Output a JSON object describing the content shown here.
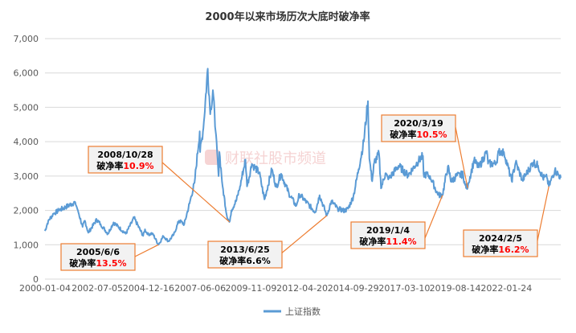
{
  "chart_data": {
    "type": "line",
    "title": "2000年以来市场历次大底时破净率",
    "xlabel": "",
    "ylabel": "",
    "ylim": [
      0,
      7000
    ],
    "yticks": [
      "0",
      "1,000",
      "2,000",
      "3,000",
      "4,000",
      "5,000",
      "6,000",
      "7,000"
    ],
    "xticks": [
      {
        "label": "2000-01-04",
        "date": "2000-01-04"
      },
      {
        "label": "2002-07-05",
        "date": "2002-07-05"
      },
      {
        "label": "2004-12-16",
        "date": "2004-12-16"
      },
      {
        "label": "2007-06-06",
        "date": "2007-06-06"
      },
      {
        "label": "2009-11-09",
        "date": "2009-11-09"
      },
      {
        "label": "2012-04-20",
        "date": "2012-04-20"
      },
      {
        "label": "2014-09-29",
        "date": "2014-09-29"
      },
      {
        "label": "2017-03-10",
        "date": "2017-03-10"
      },
      {
        "label": "2019-08-14",
        "date": "2019-08-14"
      },
      {
        "label": "2022-01-24",
        "date": "2022-01-24"
      }
    ],
    "xrange": [
      "2000-01-04",
      "2024-08-30"
    ],
    "grid": true,
    "legend_position": "bottom",
    "series": [
      {
        "name": "上证指数",
        "color": "#5b9bd5",
        "points": [
          [
            "2000-01-04",
            1400
          ],
          [
            "2000-03-01",
            1700
          ],
          [
            "2000-06-01",
            1900
          ],
          [
            "2000-09-01",
            2000
          ],
          [
            "2001-01-01",
            2100
          ],
          [
            "2001-06-14",
            2240
          ],
          [
            "2001-08-01",
            2000
          ],
          [
            "2001-10-22",
            1520
          ],
          [
            "2001-12-01",
            1700
          ],
          [
            "2002-01-29",
            1350
          ],
          [
            "2002-06-25",
            1730
          ],
          [
            "2002-09-01",
            1600
          ],
          [
            "2003-01-06",
            1320
          ],
          [
            "2003-04-15",
            1650
          ],
          [
            "2003-11-15",
            1320
          ],
          [
            "2004-04-07",
            1780
          ],
          [
            "2004-09-13",
            1260
          ],
          [
            "2004-10-15",
            1450
          ],
          [
            "2004-12-01",
            1300
          ],
          [
            "2005-02-25",
            1330
          ],
          [
            "2005-06-06",
            1000
          ],
          [
            "2005-09-01",
            1250
          ],
          [
            "2005-12-01",
            1100
          ],
          [
            "2006-03-01",
            1300
          ],
          [
            "2006-06-01",
            1700
          ],
          [
            "2006-09-01",
            1600
          ],
          [
            "2006-12-01",
            2200
          ],
          [
            "2007-02-27",
            2800
          ],
          [
            "2007-05-29",
            4300
          ],
          [
            "2007-06-05",
            3700
          ],
          [
            "2007-08-01",
            4400
          ],
          [
            "2007-10-16",
            6124
          ],
          [
            "2007-11-28",
            4800
          ],
          [
            "2008-01-14",
            5500
          ],
          [
            "2008-03-01",
            4300
          ],
          [
            "2008-04-22",
            3000
          ],
          [
            "2008-05-06",
            3700
          ],
          [
            "2008-07-01",
            2700
          ],
          [
            "2008-09-18",
            1800
          ],
          [
            "2008-10-28",
            1664
          ],
          [
            "2008-12-01",
            2000
          ],
          [
            "2009-03-01",
            2300
          ],
          [
            "2009-05-01",
            2700
          ],
          [
            "2009-08-04",
            3478
          ],
          [
            "2009-09-01",
            2700
          ],
          [
            "2009-11-24",
            3350
          ],
          [
            "2010-04-01",
            3100
          ],
          [
            "2010-07-02",
            2320
          ],
          [
            "2010-11-08",
            3186
          ],
          [
            "2011-01-25",
            2680
          ],
          [
            "2011-04-18",
            3067
          ],
          [
            "2011-09-01",
            2500
          ],
          [
            "2012-01-06",
            2130
          ],
          [
            "2012-03-02",
            2470
          ],
          [
            "2012-06-01",
            2300
          ],
          [
            "2012-12-04",
            1950
          ],
          [
            "2013-02-18",
            2440
          ],
          [
            "2013-06-25",
            1850
          ],
          [
            "2013-09-12",
            2270
          ],
          [
            "2014-01-01",
            2050
          ],
          [
            "2014-04-28",
            1990
          ],
          [
            "2014-07-01",
            2050
          ],
          [
            "2014-10-01",
            2400
          ],
          [
            "2015-01-01",
            3200
          ],
          [
            "2015-04-01",
            4000
          ],
          [
            "2015-06-12",
            5178
          ],
          [
            "2015-07-08",
            3500
          ],
          [
            "2015-08-26",
            2850
          ],
          [
            "2015-10-01",
            3400
          ],
          [
            "2015-12-23",
            3650
          ],
          [
            "2016-01-27",
            2640
          ],
          [
            "2016-04-13",
            3080
          ],
          [
            "2016-06-01",
            2900
          ],
          [
            "2016-11-29",
            3300
          ],
          [
            "2017-05-11",
            3020
          ],
          [
            "2017-11-14",
            3450
          ],
          [
            "2018-01-29",
            3587
          ],
          [
            "2018-02-09",
            3060
          ],
          [
            "2018-06-01",
            3000
          ],
          [
            "2018-10-18",
            2450
          ],
          [
            "2019-01-04",
            2440
          ],
          [
            "2019-04-08",
            3288
          ],
          [
            "2019-06-06",
            2830
          ],
          [
            "2019-09-01",
            3000
          ],
          [
            "2019-12-31",
            3050
          ],
          [
            "2020-02-03",
            2746
          ],
          [
            "2020-03-19",
            2650
          ],
          [
            "2020-04-01",
            2800
          ],
          [
            "2020-07-09",
            3450
          ],
          [
            "2020-10-01",
            3250
          ],
          [
            "2021-02-18",
            3730
          ],
          [
            "2021-03-09",
            3360
          ],
          [
            "2021-07-28",
            3360
          ],
          [
            "2021-09-13",
            3720
          ],
          [
            "2021-12-13",
            3700
          ],
          [
            "2022-04-26",
            2860
          ],
          [
            "2022-07-05",
            3400
          ],
          [
            "2022-10-31",
            2880
          ],
          [
            "2023-05-09",
            3400
          ],
          [
            "2023-08-01",
            3300
          ],
          [
            "2023-10-23",
            2950
          ],
          [
            "2024-01-02",
            2950
          ],
          [
            "2024-02-05",
            2700
          ],
          [
            "2024-05-20",
            3170
          ],
          [
            "2024-08-30",
            2950
          ]
        ]
      }
    ],
    "annotations": [
      {
        "date_label": "2005/6/6",
        "label": "破净率",
        "pct": "13.5%",
        "pct_color": "#ff0000",
        "point": [
          "2005-06-06",
          1000
        ]
      },
      {
        "date_label": "2008/10/28",
        "label": "破净率",
        "pct": "10.9%",
        "pct_color": "#ff0000",
        "point": [
          "2008-10-28",
          1664
        ]
      },
      {
        "date_label": "2013/6/25",
        "label": "破净率",
        "pct": "6.6%",
        "pct_color": "#000000",
        "point": [
          "2013-06-25",
          1850
        ]
      },
      {
        "date_label": "2019/1/4",
        "label": "破净率",
        "pct": "11.4%",
        "pct_color": "#ff0000",
        "point": [
          "2019-01-04",
          2440
        ]
      },
      {
        "date_label": "2020/3/19",
        "label": "破净率",
        "pct": "10.5%",
        "pct_color": "#ff0000",
        "point": [
          "2020-03-19",
          2650
        ]
      },
      {
        "date_label": "2024/2/5",
        "label": "破净率",
        "pct": "16.2%",
        "pct_color": "#ff0000",
        "point": [
          "2024-02-05",
          2700
        ]
      }
    ],
    "watermark": "财联社股市频道"
  }
}
